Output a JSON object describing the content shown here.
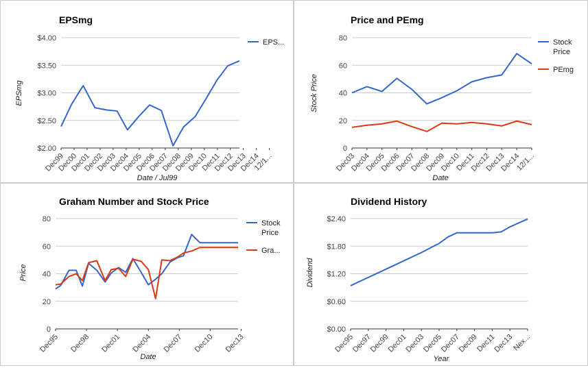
{
  "colors": {
    "blue": "#3366cc",
    "red": "#dc3912",
    "grid": "#cccccc",
    "axis": "#333333"
  },
  "chart_data": [
    {
      "type": "line",
      "title": "EPSmg",
      "xlabel": "Date / Jul99",
      "ylabel": "EPSmg",
      "ylim": [
        2.0,
        4.0
      ],
      "yticks": [
        "$2.00",
        "$2.50",
        "$3.00",
        "$3.50",
        "$4.00"
      ],
      "grid": true,
      "legend": "right",
      "categories": [
        "Dec99",
        "Dec00",
        "Dec01",
        "Dec02",
        "Dec03",
        "Dec04",
        "Dec05",
        "Dec06",
        "Dec07",
        "Dec08",
        "Dec09",
        "Dec10",
        "Dec11",
        "Dec12",
        "Dec13",
        "Dec14",
        "12/1..."
      ],
      "series": [
        {
          "name": "EPS...",
          "color": "#3366cc",
          "x": [
            0,
            0.8,
            1.7,
            2.6,
            3.5,
            4.3,
            5.1,
            6.0,
            6.8,
            7.7,
            8.6,
            9.4,
            10.3,
            11.1,
            12.0,
            12.8,
            13.7
          ],
          "values": [
            2.39,
            2.79,
            3.13,
            2.73,
            2.69,
            2.67,
            2.33,
            2.58,
            2.78,
            2.68,
            2.04,
            2.38,
            2.57,
            2.88,
            3.24,
            3.49,
            3.58
          ]
        }
      ]
    },
    {
      "type": "line",
      "title": "Price and PEmg",
      "xlabel": "Date",
      "ylabel": "Stock Price",
      "ylim": [
        0,
        80
      ],
      "yticks": [
        "0",
        "20",
        "40",
        "60",
        "80"
      ],
      "grid": true,
      "legend": "right",
      "categories": [
        "Dec03",
        "Dec04",
        "Dec05",
        "Dec06",
        "Dec07",
        "Dec08",
        "Dec09",
        "Dec10",
        "Dec11",
        "Dec12",
        "Dec13",
        "Dec14",
        "12/1..."
      ],
      "series": [
        {
          "name": "Stock Price",
          "color": "#3366cc",
          "x": [
            0,
            1,
            2,
            3,
            4,
            5,
            6,
            7,
            8,
            9,
            10,
            11,
            12
          ],
          "values": [
            40,
            44.5,
            41,
            50.5,
            42.5,
            32,
            36.5,
            41.5,
            48,
            51,
            53,
            68.5,
            61
          ]
        },
        {
          "name": "PEmg",
          "color": "#dc3912",
          "x": [
            0,
            1,
            2,
            3,
            4,
            5,
            6,
            7,
            8,
            9,
            10,
            11,
            12
          ],
          "values": [
            15,
            16.5,
            17.5,
            19.5,
            15.5,
            12,
            18,
            17.5,
            18.5,
            17.5,
            16,
            19.5,
            17
          ]
        }
      ]
    },
    {
      "type": "line",
      "title": "Graham Number and Stock Price",
      "xlabel": "Date",
      "ylabel": "Price",
      "ylim": [
        0,
        80
      ],
      "yticks": [
        "0",
        "20",
        "40",
        "60",
        "80"
      ],
      "grid": true,
      "legend": "right",
      "categories": [
        "Dec95",
        "Dec98",
        "Dec01",
        "Dec04",
        "Dec07",
        "Dec10",
        "Dec13"
      ],
      "category_x": [
        0,
        3,
        6,
        9,
        12,
        15,
        18
      ],
      "series": [
        {
          "name": "Stock Price",
          "color": "#3366cc",
          "x": [
            0,
            0.5,
            1.3,
            2,
            2.6,
            3.2,
            4,
            4.8,
            5.4,
            6.1,
            6.8,
            7.5,
            8.3,
            9,
            9.7,
            10.3,
            11.1,
            11.8,
            12.4,
            13.2,
            14,
            14.8,
            15.5,
            16.4,
            17.2,
            17.7
          ],
          "values": [
            29,
            31.5,
            42.5,
            42.5,
            31,
            47.5,
            42.5,
            34,
            40.5,
            44.5,
            41,
            51,
            41,
            32,
            36,
            40,
            48.5,
            51.5,
            53,
            68.5,
            62.5,
            62.5,
            62.5,
            62.5,
            62.5,
            62.5
          ]
        },
        {
          "name": "Gra...",
          "color": "#dc3912",
          "x": [
            0,
            0.5,
            1.3,
            2,
            2.6,
            3.2,
            4,
            4.8,
            5.4,
            6.1,
            6.8,
            7.5,
            8.3,
            9,
            9.7,
            10.3,
            11.1,
            11.8,
            12.4,
            13.2,
            14,
            14.8,
            15.5,
            16.4,
            17.2,
            17.7
          ],
          "values": [
            32,
            32.5,
            38,
            40,
            35,
            48,
            49.5,
            35,
            43,
            44,
            38,
            50.5,
            49,
            43,
            22,
            50,
            49.5,
            52,
            55,
            56.5,
            59,
            59,
            59,
            59,
            59,
            59
          ]
        }
      ]
    },
    {
      "type": "line",
      "title": "Dividend History",
      "xlabel": "Year",
      "ylabel": "Dividend",
      "ylim": [
        0,
        2.4
      ],
      "yticks": [
        "$0.00",
        "$0.60",
        "$1.20",
        "$1.80",
        "$2.40"
      ],
      "grid": true,
      "categories": [
        "Dec95",
        "Dec97",
        "Dec99",
        "Dec01",
        "Dec03",
        "Dec05",
        "Dec07",
        "Dec09",
        "Dec11",
        "Dec13",
        "Nex..."
      ],
      "series": [
        {
          "name": "Dividend",
          "color": "#3366cc",
          "x": [
            0,
            1,
            2,
            3,
            4,
            5,
            5.5,
            6,
            7,
            8,
            8.5,
            9,
            10
          ],
          "values": [
            0.94,
            1.12,
            1.3,
            1.48,
            1.66,
            1.86,
            2.0,
            2.09,
            2.09,
            2.09,
            2.11,
            2.22,
            2.39
          ]
        }
      ]
    }
  ]
}
